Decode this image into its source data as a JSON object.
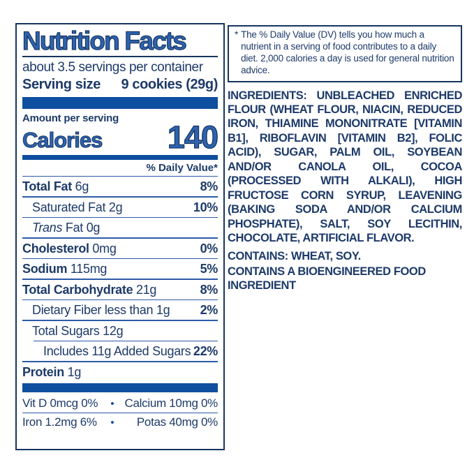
{
  "colors": {
    "navy_outline": "#16355f",
    "body_text": "#1d3a69",
    "bar_blue": "#0f4f9f",
    "title_fill": "#2e63af",
    "rule_blue": "#2d5aa6"
  },
  "panel": {
    "title": "Nutrition Facts",
    "servings_per_container": "about 3.5 servings per container",
    "serving_size_label": "Serving size",
    "serving_size_value": "9 cookies (29g)",
    "amount_per_serving": "Amount per serving",
    "calories_label": "Calories",
    "calories_value": "140",
    "daily_value_header": "% Daily Value*",
    "rows": [
      {
        "name": "Total Fat",
        "amount": "6g",
        "dv": "8%"
      },
      {
        "name": "Saturated Fat",
        "amount": "2g",
        "dv": "10%"
      },
      {
        "name_italic": "Trans",
        "name": "Fat",
        "amount": "0g",
        "dv": ""
      },
      {
        "name": "Cholesterol",
        "amount": "0mg",
        "dv": "0%"
      },
      {
        "name": "Sodium",
        "amount": "115mg",
        "dv": "5%"
      },
      {
        "name": "Total Carbohydrate",
        "amount": "21g",
        "dv": "8%"
      },
      {
        "name": "Dietary Fiber",
        "amount": "less than 1g",
        "dv": "2%"
      },
      {
        "name": "Total Sugars",
        "amount": "12g",
        "dv": ""
      },
      {
        "name": "Includes 11g Added Sugars",
        "amount": "",
        "dv": "22%"
      },
      {
        "name": "Protein",
        "amount": "1g",
        "dv": ""
      }
    ],
    "micronutrients": {
      "bullet": "•",
      "rows": [
        {
          "left": "Vit D 0mcg 0%",
          "right": "Calcium 10mg 0%"
        },
        {
          "left": "Iron 1.2mg 6%",
          "right": "Potas 40mg 0%"
        }
      ]
    }
  },
  "footnote": {
    "marker": "*",
    "text": "The % Daily Value (DV) tells you how much a nutrient in a serving of food contributes to a daily diet. 2,000 calories a day is used for general nutrition advice."
  },
  "ingredients": {
    "label": "INGREDIENTS:",
    "text": " UNBLEACHED ENRICHED FLOUR (WHEAT FLOUR, NIACIN, REDUCED IRON, THIAMINE MONONITRATE [VITAMIN B1], RIBOFLAVIN [VITAMIN B2], FOLIC ACID), SUGAR, PALM OIL, SOYBEAN AND/OR CANOLA OIL, COCOA (PROCESSED WITH ALKALI), HIGH FRUCTOSE CORN SYRUP, LEAVENING (BAKING SODA AND/OR CALCIUM PHOSPHATE), SALT, SOY LECITHIN, CHOCOLATE, ARTIFICIAL FLAVOR.",
    "contains": "CONTAINS: WHEAT, SOY.",
    "bioengineered": "CONTAINS A BIOENGINEERED FOOD INGREDIENT"
  }
}
